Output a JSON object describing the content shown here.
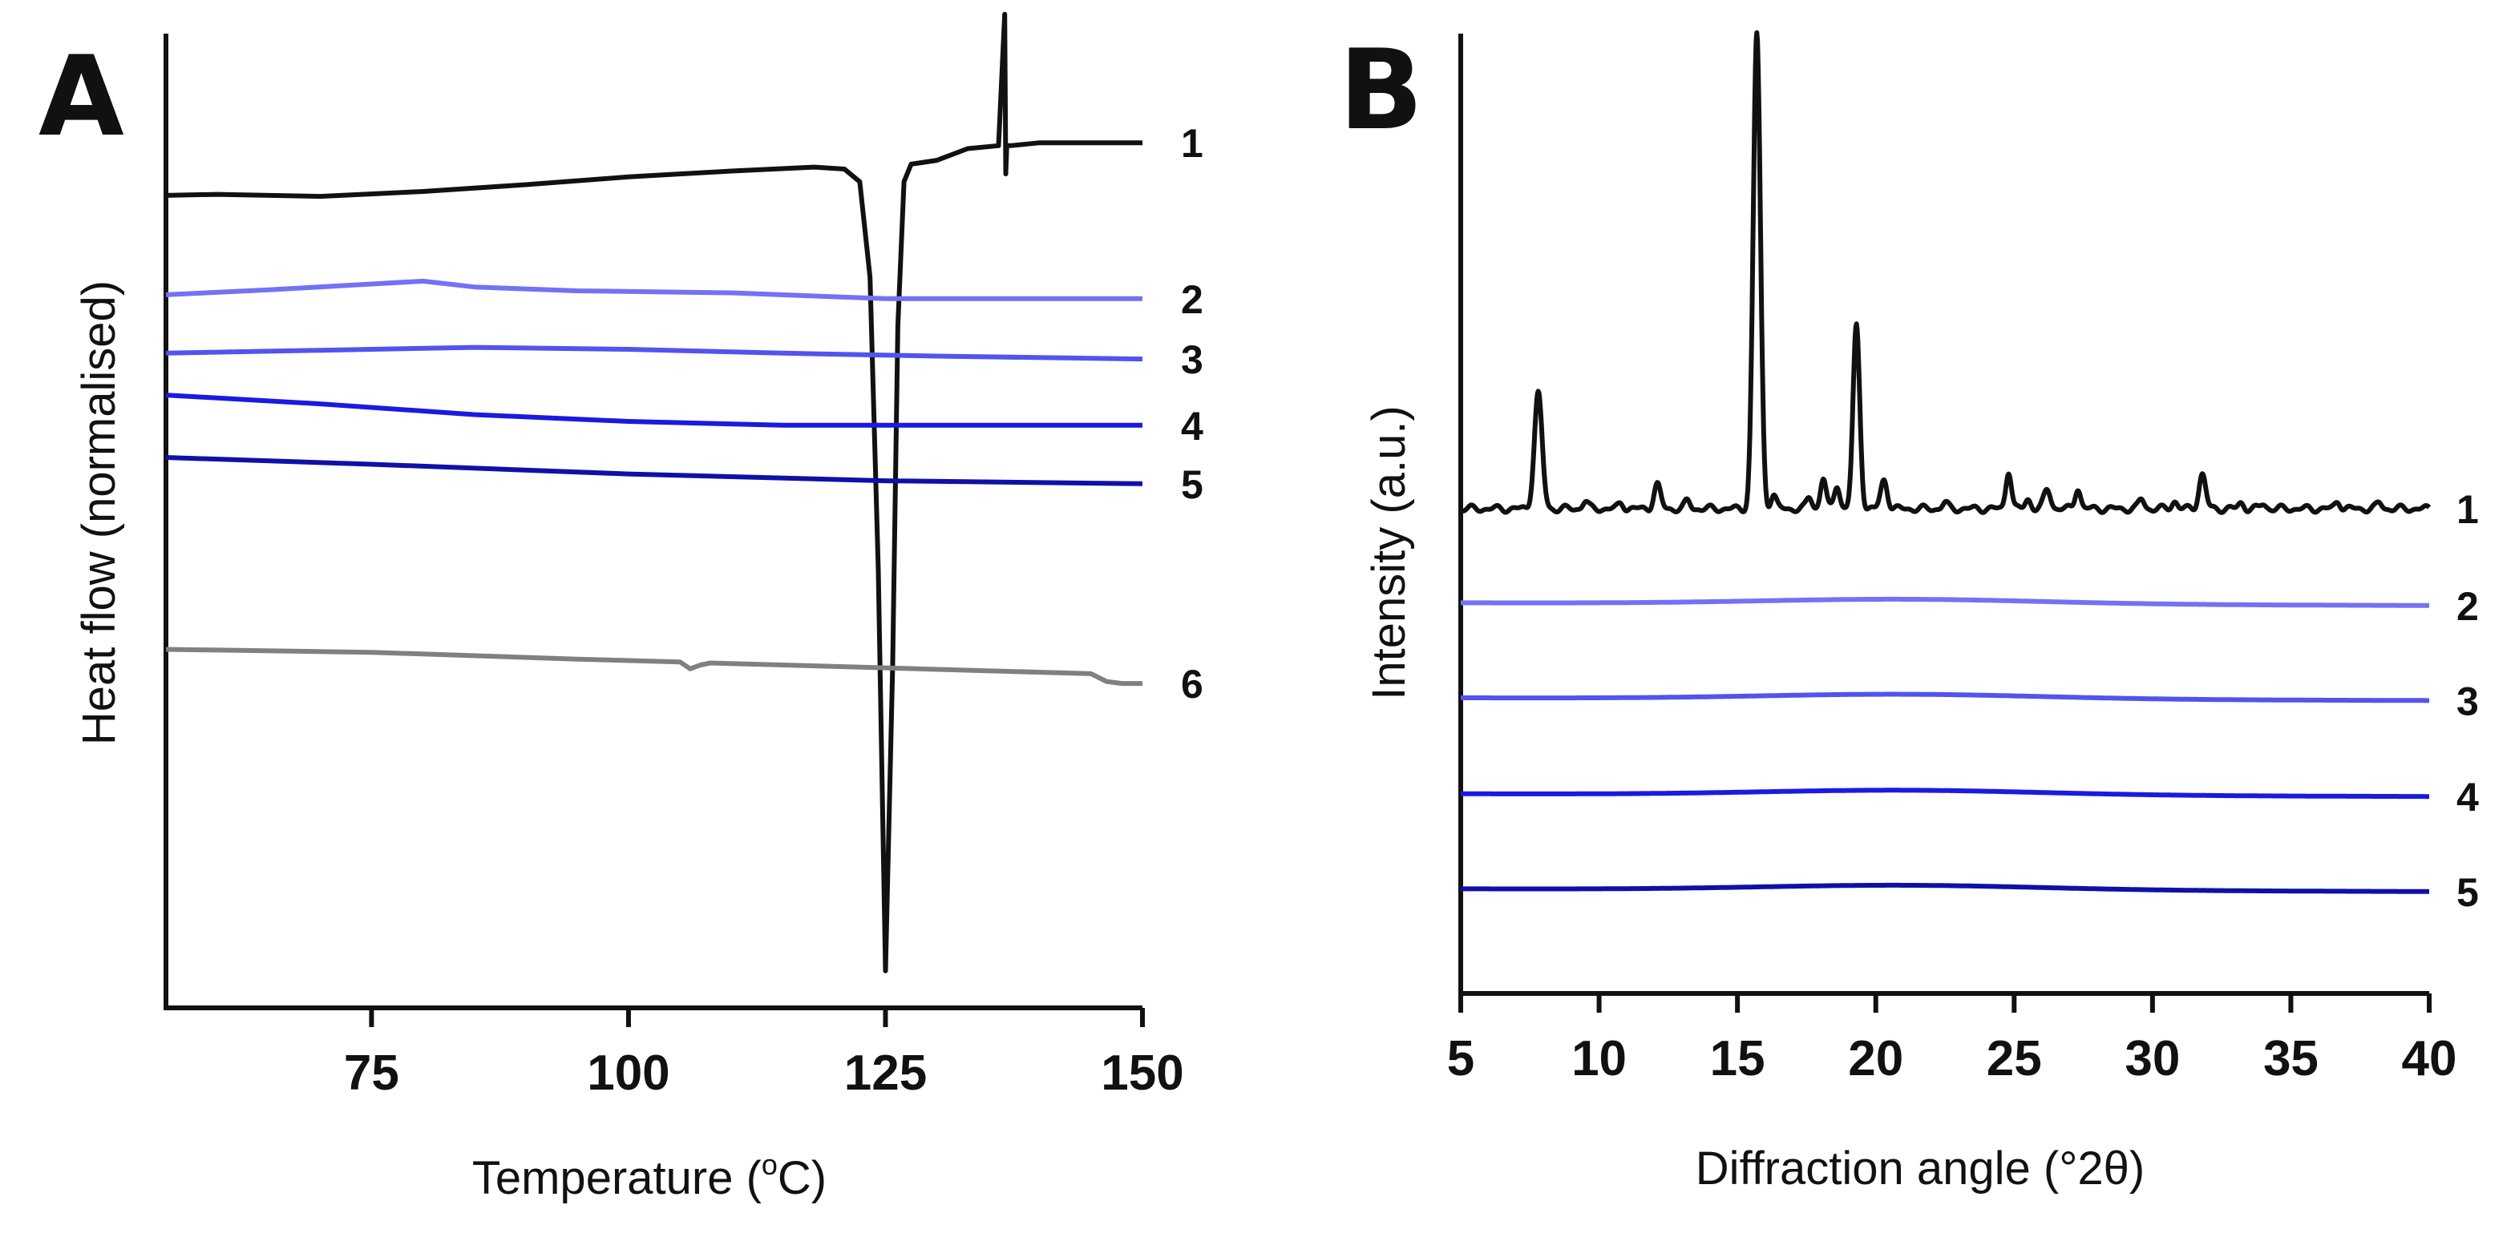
{
  "chart_data": [
    {
      "type": "line",
      "panel": "A",
      "xlabel_main": "Temperature (",
      "xlabel_sup": "o",
      "xlabel_unit": "C)",
      "ylabel": "Heat flow (normalised)",
      "xlim": [
        55,
        150
      ],
      "xticks": [
        "75",
        "100",
        "125",
        "150"
      ],
      "xtick_values": [
        75,
        100,
        125,
        150
      ],
      "ylim": [
        0,
        100
      ],
      "y_ticks_shown": false,
      "grid": false,
      "legend": "none; trace numbers at right end of each curve",
      "series": [
        {
          "name": "1",
          "color": "#111111",
          "x": [
            55,
            60,
            70,
            80,
            90,
            100,
            110,
            118,
            121,
            122.5,
            123.5,
            124.3,
            125,
            125.7,
            126.2,
            126.8,
            127.5,
            130,
            133,
            136,
            136.6,
            136.7,
            136.8,
            137.2,
            140,
            145,
            150
          ],
          "y": [
            83.4,
            83.5,
            83.3,
            83.8,
            84.5,
            85.3,
            85.9,
            86.3,
            86.1,
            84.8,
            75.0,
            45.0,
            3.8,
            35.0,
            70.0,
            84.8,
            86.6,
            87.0,
            88.2,
            88.5,
            102.0,
            85.6,
            88.5,
            88.5,
            88.8,
            88.8,
            88.8
          ]
        },
        {
          "name": "2",
          "color": "#7272f5",
          "x": [
            55,
            65,
            75,
            80,
            85,
            95,
            110,
            125,
            135,
            150
          ],
          "y": [
            73.2,
            73.7,
            74.3,
            74.6,
            74.0,
            73.6,
            73.4,
            72.8,
            72.8,
            72.8
          ]
        },
        {
          "name": "3",
          "color": "#5353ef",
          "x": [
            55,
            70,
            85,
            100,
            115,
            130,
            150
          ],
          "y": [
            67.2,
            67.5,
            67.8,
            67.6,
            67.2,
            66.9,
            66.6
          ]
        },
        {
          "name": "4",
          "color": "#1a1ae0",
          "x": [
            55,
            70,
            85,
            100,
            115,
            130,
            150
          ],
          "y": [
            62.9,
            62.0,
            60.9,
            60.2,
            59.8,
            59.8,
            59.8
          ]
        },
        {
          "name": "5",
          "color": "#1010a8",
          "x": [
            55,
            75,
            100,
            125,
            150
          ],
          "y": [
            56.5,
            55.8,
            54.8,
            54.1,
            53.8
          ]
        },
        {
          "name": "6",
          "color": "#808080",
          "x": [
            55,
            75,
            95,
            105,
            106,
            107,
            108,
            125,
            145,
            146.5,
            148,
            150
          ],
          "y": [
            36.8,
            36.5,
            35.8,
            35.5,
            34.8,
            35.2,
            35.4,
            34.9,
            34.3,
            33.5,
            33.3,
            33.3
          ]
        }
      ]
    },
    {
      "type": "line",
      "panel": "B",
      "xlabel": "Diffraction angle (°2θ)",
      "ylabel": "Intensity (a.u.)",
      "xlim": [
        5,
        40
      ],
      "xticks": [
        "5",
        "10",
        "15",
        "20",
        "25",
        "30",
        "35",
        "40"
      ],
      "xtick_values": [
        5,
        10,
        15,
        20,
        25,
        30,
        35,
        40
      ],
      "ylim": [
        0,
        100
      ],
      "y_ticks_shown": false,
      "grid": false,
      "legend": "none; trace numbers at right end of each pattern",
      "series": [
        {
          "name": "1",
          "color": "#111111",
          "peaks": [
            {
              "x": 7.8,
              "height": 12.0,
              "width": 0.14
            },
            {
              "x": 9.5,
              "height": 0.8,
              "width": 0.1
            },
            {
              "x": 10.8,
              "height": 0.6,
              "width": 0.1
            },
            {
              "x": 12.1,
              "height": 2.5,
              "width": 0.12
            },
            {
              "x": 13.2,
              "height": 0.8,
              "width": 0.1
            },
            {
              "x": 15.7,
              "height": 49.5,
              "width": 0.13
            },
            {
              "x": 16.3,
              "height": 1.5,
              "width": 0.1
            },
            {
              "x": 17.6,
              "height": 1.2,
              "width": 0.1
            },
            {
              "x": 18.1,
              "height": 3.2,
              "width": 0.1
            },
            {
              "x": 18.6,
              "height": 2.5,
              "width": 0.1
            },
            {
              "x": 19.3,
              "height": 19.0,
              "width": 0.12
            },
            {
              "x": 20.3,
              "height": 3.0,
              "width": 0.12
            },
            {
              "x": 22.5,
              "height": 0.6,
              "width": 0.1
            },
            {
              "x": 24.8,
              "height": 4.0,
              "width": 0.1
            },
            {
              "x": 25.5,
              "height": 1.0,
              "width": 0.1
            },
            {
              "x": 26.2,
              "height": 2.0,
              "width": 0.12
            },
            {
              "x": 27.3,
              "height": 2.2,
              "width": 0.1
            },
            {
              "x": 29.6,
              "height": 1.0,
              "width": 0.1
            },
            {
              "x": 30.8,
              "height": 0.8,
              "width": 0.1
            },
            {
              "x": 31.8,
              "height": 3.6,
              "width": 0.12
            },
            {
              "x": 33.2,
              "height": 0.6,
              "width": 0.1
            },
            {
              "x": 34.0,
              "height": 0.5,
              "width": 0.1
            },
            {
              "x": 36.7,
              "height": 0.8,
              "width": 0.1
            },
            {
              "x": 38.2,
              "height": 0.6,
              "width": 0.1
            }
          ],
          "baseline": 50.5
        },
        {
          "name": "2",
          "color": "#7272f5",
          "baseline": 40.7,
          "halo_center": 21,
          "halo_height": 0.5,
          "halo_width": 5
        },
        {
          "name": "3",
          "color": "#5353ef",
          "baseline": 30.8,
          "halo_center": 21,
          "halo_height": 0.5,
          "halo_width": 5
        },
        {
          "name": "4",
          "color": "#1a1ae0",
          "baseline": 20.8,
          "halo_center": 21,
          "halo_height": 0.5,
          "halo_width": 5
        },
        {
          "name": "5",
          "color": "#1010a8",
          "baseline": 10.9,
          "halo_center": 21,
          "halo_height": 0.5,
          "halo_width": 5
        }
      ]
    }
  ]
}
